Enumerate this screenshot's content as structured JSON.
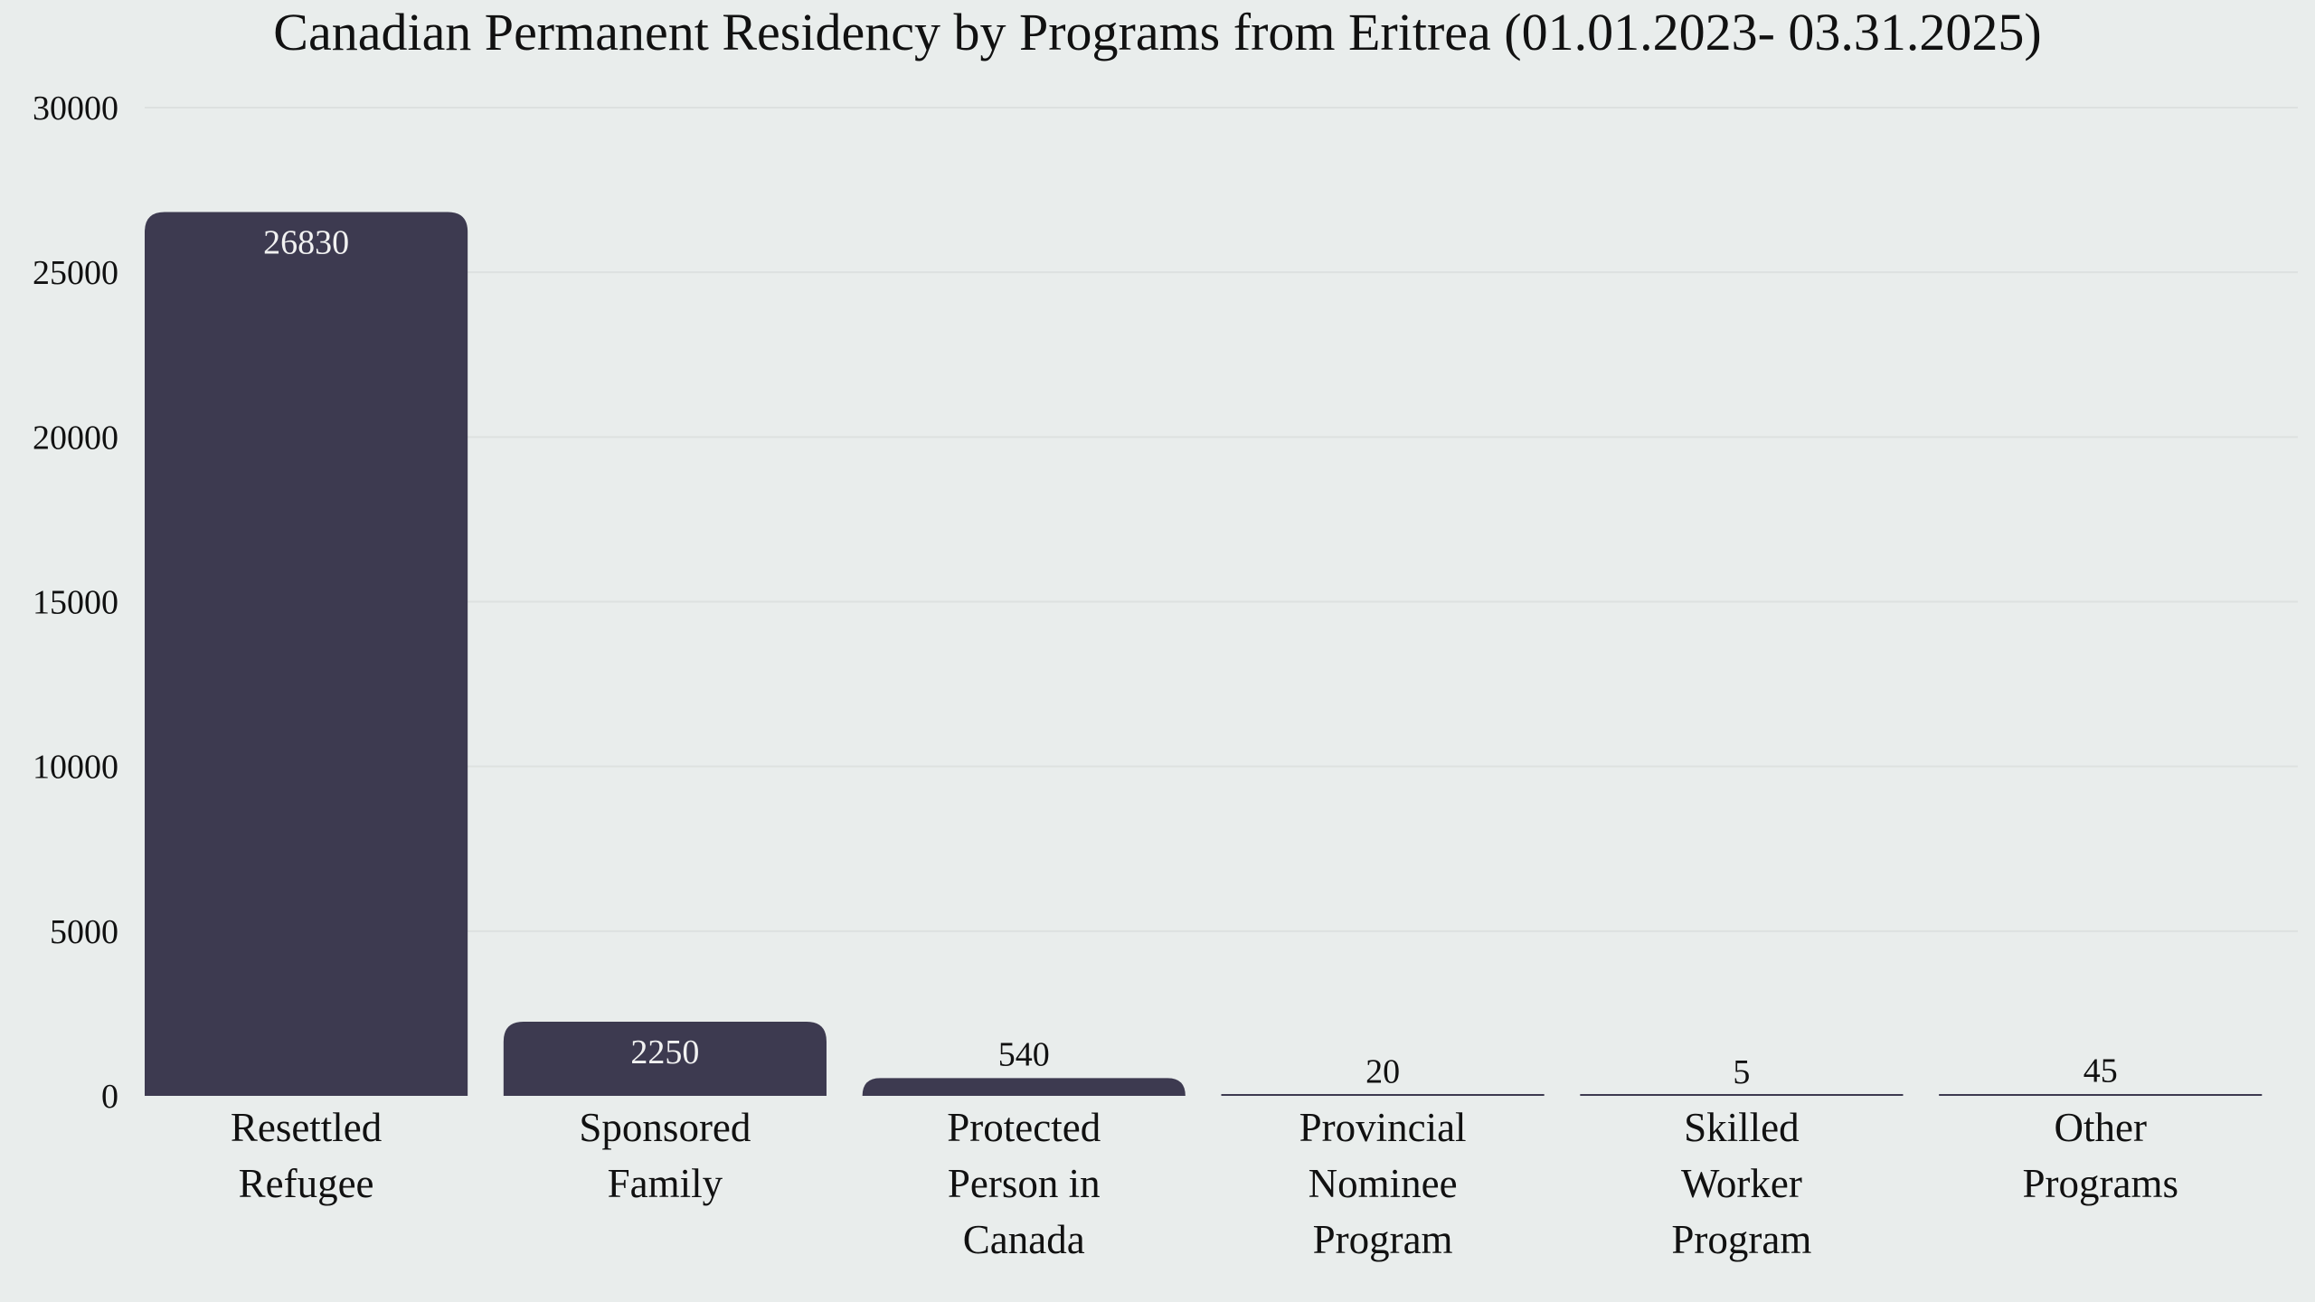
{
  "chart_data": {
    "type": "bar",
    "title": "Canadian Permanent Residency by Programs from Eritrea (01.01.2023- 03.31.2025)",
    "xlabel": "",
    "ylabel": "",
    "ylim": [
      0,
      30000
    ],
    "yticks": [
      0,
      5000,
      10000,
      15000,
      20000,
      25000,
      30000
    ],
    "grid": true,
    "categories": [
      [
        "Resettled",
        "Refugee"
      ],
      [
        "Sponsored",
        "Family"
      ],
      [
        "Protected",
        "Person in",
        "Canada"
      ],
      [
        "Provincial",
        "Nominee",
        "Program"
      ],
      [
        "Skilled",
        "Worker",
        "Program"
      ],
      [
        "Other",
        "Programs"
      ]
    ],
    "values": [
      26830,
      2250,
      540,
      20,
      5,
      45
    ],
    "bar_color": "#3d3a50"
  }
}
